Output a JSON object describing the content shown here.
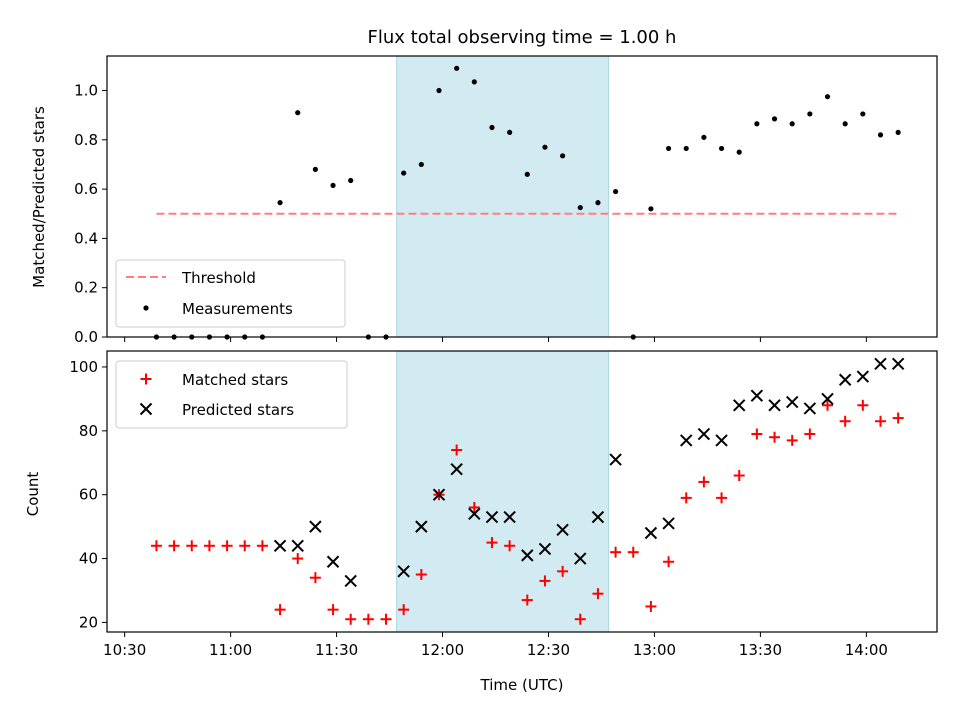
{
  "title": "Flux total observing time = 1.00 h",
  "colors": {
    "threshold": "#ff7f7f",
    "measurement": "#000000",
    "matched": "#ff0000",
    "predicted": "#000000",
    "shade": "#add8e6"
  },
  "chart_data": [
    {
      "type": "scatter",
      "ylabel": "Matched/Predicted stars",
      "ylim": [
        0,
        1.14
      ],
      "yticks": [
        "0.0",
        "0.2",
        "0.4",
        "0.6",
        "0.8",
        "1.0"
      ],
      "shaded_interval": [
        "11:47",
        "12:47"
      ],
      "legend_position": "lower-left",
      "legend": [
        "Threshold",
        "Measurements"
      ],
      "threshold": {
        "name": "Threshold",
        "value": 0.5,
        "x_range": [
          "10:39",
          "14:09"
        ]
      },
      "series": [
        {
          "name": "Measurements",
          "points": [
            [
              "10:39",
              0.0
            ],
            [
              "10:44",
              0.0
            ],
            [
              "10:49",
              0.0
            ],
            [
              "10:54",
              0.0
            ],
            [
              "10:59",
              0.0
            ],
            [
              "11:04",
              0.0
            ],
            [
              "11:09",
              0.0
            ],
            [
              "11:14",
              0.545
            ],
            [
              "11:19",
              0.91
            ],
            [
              "11:24",
              0.68
            ],
            [
              "11:29",
              0.615
            ],
            [
              "11:34",
              0.635
            ],
            [
              "11:39",
              0.0
            ],
            [
              "11:44",
              0.0
            ],
            [
              "11:49",
              0.665
            ],
            [
              "11:54",
              0.7
            ],
            [
              "11:59",
              1.0
            ],
            [
              "12:04",
              1.09
            ],
            [
              "12:09",
              1.035
            ],
            [
              "12:14",
              0.85
            ],
            [
              "12:19",
              0.83
            ],
            [
              "12:24",
              0.66
            ],
            [
              "12:29",
              0.77
            ],
            [
              "12:34",
              0.735
            ],
            [
              "12:39",
              0.525
            ],
            [
              "12:44",
              0.545
            ],
            [
              "12:49",
              0.59
            ],
            [
              "12:54",
              0.0
            ],
            [
              "12:59",
              0.52
            ],
            [
              "13:04",
              0.765
            ],
            [
              "13:09",
              0.765
            ],
            [
              "13:14",
              0.81
            ],
            [
              "13:19",
              0.765
            ],
            [
              "13:24",
              0.75
            ],
            [
              "13:29",
              0.865
            ],
            [
              "13:34",
              0.885
            ],
            [
              "13:39",
              0.865
            ],
            [
              "13:44",
              0.905
            ],
            [
              "13:49",
              0.975
            ],
            [
              "13:54",
              0.865
            ],
            [
              "13:59",
              0.905
            ],
            [
              "14:04",
              0.82
            ],
            [
              "14:09",
              0.83
            ]
          ]
        }
      ]
    },
    {
      "type": "scatter",
      "ylabel": "Count",
      "xlabel": "Time (UTC)",
      "ylim": [
        17,
        105
      ],
      "yticks": [
        "20",
        "40",
        "60",
        "80",
        "100"
      ],
      "xticks": [
        "10:30",
        "11:00",
        "11:30",
        "12:00",
        "12:30",
        "13:00",
        "13:30",
        "14:00"
      ],
      "shaded_interval": [
        "11:47",
        "12:47"
      ],
      "legend_position": "upper-left",
      "legend": [
        "Matched stars",
        "Predicted stars"
      ],
      "series": [
        {
          "name": "Matched stars",
          "points": [
            [
              "10:39",
              44
            ],
            [
              "10:44",
              44
            ],
            [
              "10:49",
              44
            ],
            [
              "10:54",
              44
            ],
            [
              "10:59",
              44
            ],
            [
              "11:04",
              44
            ],
            [
              "11:09",
              44
            ],
            [
              "11:14",
              24
            ],
            [
              "11:19",
              40
            ],
            [
              "11:24",
              34
            ],
            [
              "11:29",
              24
            ],
            [
              "11:34",
              21
            ],
            [
              "11:39",
              21
            ],
            [
              "11:44",
              21
            ],
            [
              "11:49",
              24
            ],
            [
              "11:54",
              35
            ],
            [
              "11:59",
              60
            ],
            [
              "12:04",
              74
            ],
            [
              "12:09",
              56
            ],
            [
              "12:14",
              45
            ],
            [
              "12:19",
              44
            ],
            [
              "12:24",
              27
            ],
            [
              "12:29",
              33
            ],
            [
              "12:34",
              36
            ],
            [
              "12:39",
              21
            ],
            [
              "12:44",
              29
            ],
            [
              "12:49",
              42
            ],
            [
              "12:54",
              42
            ],
            [
              "12:59",
              25
            ],
            [
              "13:04",
              39
            ],
            [
              "13:09",
              59
            ],
            [
              "13:14",
              64
            ],
            [
              "13:19",
              59
            ],
            [
              "13:24",
              66
            ],
            [
              "13:29",
              79
            ],
            [
              "13:34",
              78
            ],
            [
              "13:39",
              77
            ],
            [
              "13:44",
              79
            ],
            [
              "13:49",
              88
            ],
            [
              "13:54",
              83
            ],
            [
              "13:59",
              88
            ],
            [
              "14:04",
              83
            ],
            [
              "14:09",
              84
            ]
          ]
        },
        {
          "name": "Predicted stars",
          "points": [
            [
              "11:14",
              44
            ],
            [
              "11:19",
              44
            ],
            [
              "11:24",
              50
            ],
            [
              "11:29",
              39
            ],
            [
              "11:34",
              33
            ],
            [
              "11:49",
              36
            ],
            [
              "11:54",
              50
            ],
            [
              "11:59",
              60
            ],
            [
              "12:04",
              68
            ],
            [
              "12:09",
              54
            ],
            [
              "12:14",
              53
            ],
            [
              "12:19",
              53
            ],
            [
              "12:24",
              41
            ],
            [
              "12:29",
              43
            ],
            [
              "12:34",
              49
            ],
            [
              "12:39",
              40
            ],
            [
              "12:44",
              53
            ],
            [
              "12:49",
              71
            ],
            [
              "12:59",
              48
            ],
            [
              "13:04",
              51
            ],
            [
              "13:09",
              77
            ],
            [
              "13:14",
              79
            ],
            [
              "13:19",
              77
            ],
            [
              "13:24",
              88
            ],
            [
              "13:29",
              91
            ],
            [
              "13:34",
              88
            ],
            [
              "13:39",
              89
            ],
            [
              "13:44",
              87
            ],
            [
              "13:49",
              90
            ],
            [
              "13:54",
              96
            ],
            [
              "13:59",
              97
            ],
            [
              "14:04",
              101
            ],
            [
              "14:09",
              101
            ]
          ]
        }
      ]
    }
  ]
}
